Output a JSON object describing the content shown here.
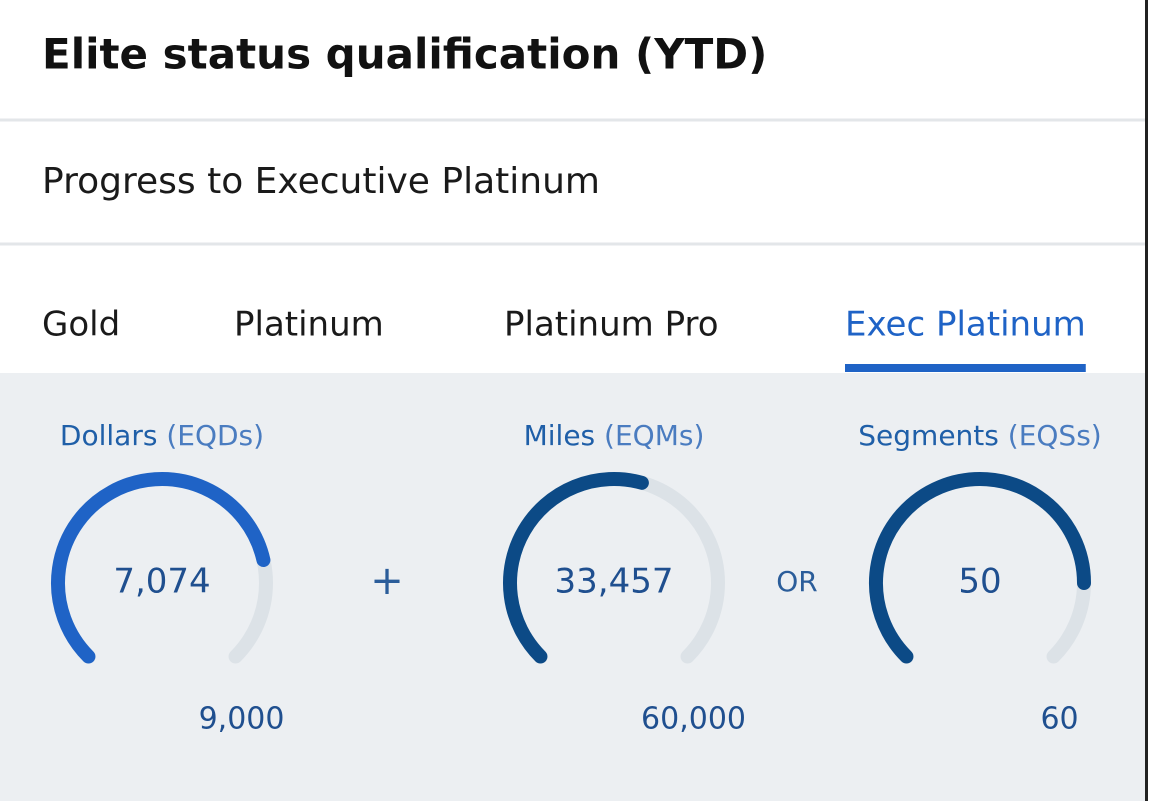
{
  "header": {
    "title": "Elite status qualification (YTD)"
  },
  "subheader": "Progress to Executive Platinum",
  "tabs": [
    {
      "label": "Gold",
      "selected": false
    },
    {
      "label": "Platinum",
      "selected": false
    },
    {
      "label": "Platinum Pro",
      "selected": false
    },
    {
      "label": "Exec Platinum",
      "selected": true
    }
  ],
  "gauges": [
    {
      "name": "Dollars",
      "unit": "(EQDs)",
      "value": 7074,
      "value_label": "7,074",
      "max": 9000,
      "max_label": "9,000",
      "color": "#1f63c6"
    },
    {
      "name": "Miles",
      "unit": "(EQMs)",
      "value": 33457,
      "value_label": "33,457",
      "max": 60000,
      "max_label": "60,000",
      "color": "#0c4a86"
    },
    {
      "name": "Segments",
      "unit": "(EQSs)",
      "value": 50,
      "value_label": "50",
      "max": 60,
      "max_label": "60",
      "color": "#0c4a86"
    }
  ],
  "operators": [
    "+",
    "OR"
  ]
}
